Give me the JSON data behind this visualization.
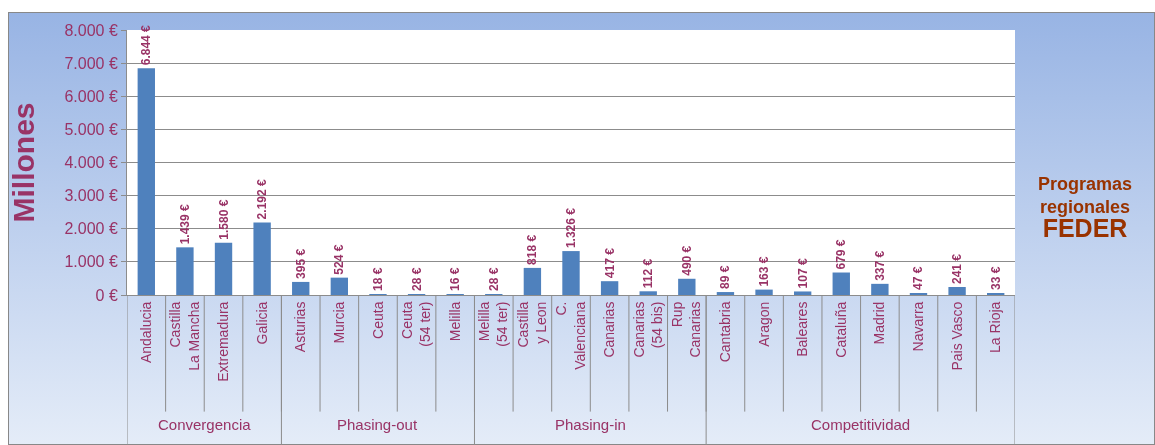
{
  "chart_data": {
    "type": "bar",
    "title": "Programas regionales FEDER",
    "ylabel": "Millones",
    "categories": [
      "Andalucia",
      "Castilla La Mancha",
      "Extremadura",
      "Galicia",
      "Asturias",
      "Murcia",
      "Ceuta",
      "Ceuta (54 ter)",
      "Melilla",
      "Melilla (54 ter)",
      "Castilla y Leon",
      "C. Valenciana",
      "Canarias",
      "Canarias (54 bis)",
      "Rup Canarias",
      "Cantabria",
      "Aragon",
      "Baleares",
      "Cataluña",
      "Madrid",
      "Navarra",
      "Pais Vasco",
      "La Rioja"
    ],
    "values": [
      6844,
      1439,
      1580,
      2192,
      395,
      524,
      18,
      28,
      16,
      28,
      818,
      1326,
      417,
      112,
      490,
      89,
      163,
      107,
      679,
      337,
      47,
      241,
      33
    ],
    "value_labels": [
      "6.844 €",
      "1.439 €",
      "1.580 €",
      "2.192 €",
      "395 €",
      "524 €",
      "18 €",
      "28 €",
      "16 €",
      "28 €",
      "818 €",
      "1.326 €",
      "417 €",
      "112 €",
      "490 €",
      "89 €",
      "163 €",
      "107 €",
      "679 €",
      "337 €",
      "47 €",
      "241 €",
      "33 €"
    ],
    "color": "#4f81bd",
    "ylim": [
      0,
      8000
    ],
    "yticks": [
      {
        "value": 0,
        "label": "0 €"
      },
      {
        "value": 1000,
        "label": "1.000 €"
      },
      {
        "value": 2000,
        "label": "2.000 €"
      },
      {
        "value": 3000,
        "label": "3.000 €"
      },
      {
        "value": 4000,
        "label": "4.000 €"
      },
      {
        "value": 5000,
        "label": "5.000 €"
      },
      {
        "value": 6000,
        "label": "6.000 €"
      },
      {
        "value": 7000,
        "label": "7.000 €"
      },
      {
        "value": 8000,
        "label": "8.000 €"
      }
    ],
    "grid": "y",
    "annotations": [
      "Convergencia",
      "Phasing-out",
      "Phasing-in",
      "Competitividad"
    ]
  }
}
